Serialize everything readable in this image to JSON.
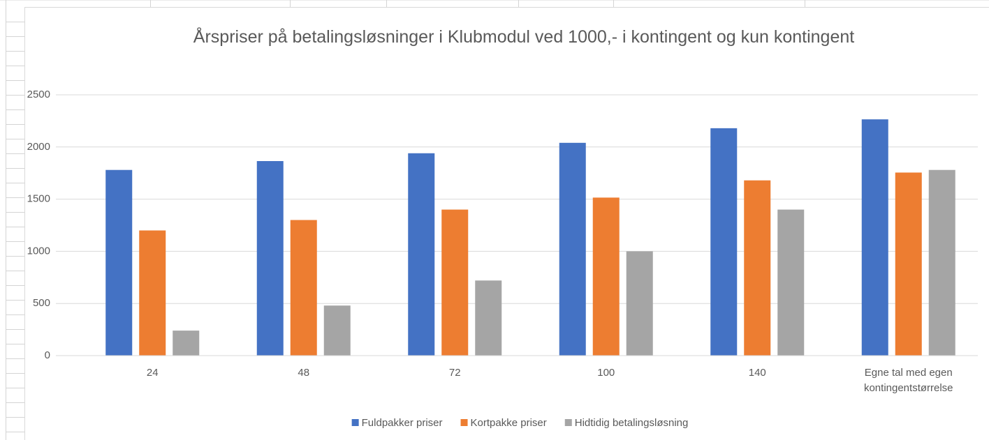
{
  "chart_data": {
    "type": "bar",
    "title": "Årspriser på betalingsløsninger i Klubmodul ved 1000,- i kontingent og kun kontingent",
    "categories": [
      "24",
      "48",
      "72",
      "100",
      "140",
      "Egne tal med egen kontingentstørrelse"
    ],
    "series": [
      {
        "name": "Fuldpakker priser",
        "color": "#4472c4",
        "values": [
          1780,
          1865,
          1940,
          2040,
          2180,
          2265
        ]
      },
      {
        "name": "Kortpakke priser",
        "color": "#ed7d31",
        "values": [
          1200,
          1300,
          1400,
          1515,
          1680,
          1755
        ]
      },
      {
        "name": "Hidtidig betalingsløsning",
        "color": "#a5a5a5",
        "values": [
          240,
          480,
          720,
          1000,
          1400,
          1780
        ]
      }
    ],
    "ylim": [
      0,
      2500
    ],
    "yticks": [
      0,
      500,
      1000,
      1500,
      2000,
      2500
    ],
    "grid": true,
    "legend": "bottom"
  }
}
